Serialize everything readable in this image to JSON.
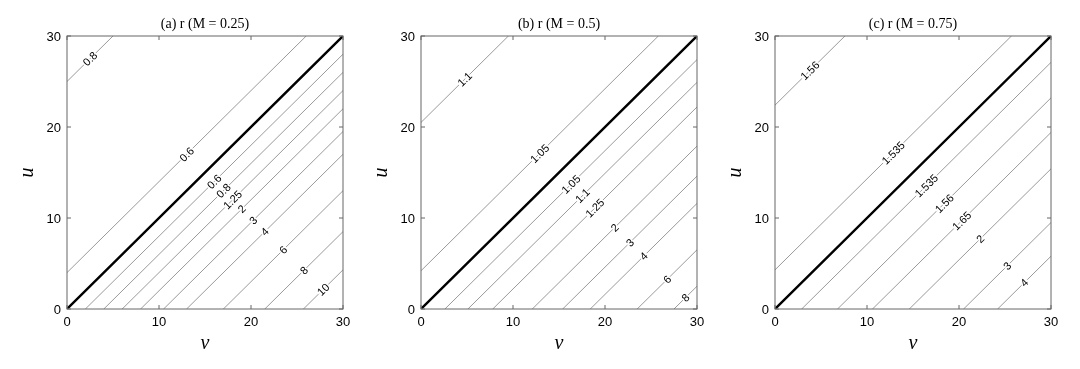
{
  "chart_data": [
    {
      "type": "line",
      "title": "(a) r    (M = 0.25)",
      "xlabel": "v",
      "ylabel": "u",
      "xlim": [
        0,
        30
      ],
      "ylim": [
        0,
        30
      ],
      "xticks": [
        0,
        10,
        20,
        30
      ],
      "yticks": [
        0,
        10,
        20,
        30
      ],
      "grid": false,
      "series": [
        {
          "name": "0.8",
          "color": "#808080",
          "x": [
            0,
            5
          ],
          "values": [
            25,
            30
          ]
        },
        {
          "name": "0.6",
          "color": "#808080",
          "x": [
            0,
            26
          ],
          "values": [
            4,
            30
          ]
        },
        {
          "color": "#000000",
          "x": [
            0,
            30
          ],
          "values": [
            0,
            30
          ]
        },
        {
          "name": "0.6",
          "color": "#808080",
          "x": [
            2,
            30
          ],
          "values": [
            0,
            28
          ]
        },
        {
          "name": "0.8",
          "color": "#808080",
          "x": [
            4,
            30
          ],
          "values": [
            0,
            26
          ]
        },
        {
          "name": "1.25",
          "color": "#808080",
          "x": [
            6,
            30
          ],
          "values": [
            0,
            24
          ]
        },
        {
          "name": "2",
          "color": "#808080",
          "x": [
            8,
            30
          ],
          "values": [
            0,
            22
          ]
        },
        {
          "name": "3",
          "color": "#808080",
          "x": [
            10.5,
            30
          ],
          "values": [
            0,
            19.5
          ]
        },
        {
          "name": "4",
          "color": "#808080",
          "x": [
            13,
            30
          ],
          "values": [
            0,
            17
          ]
        },
        {
          "name": "6",
          "color": "#808080",
          "x": [
            17,
            30
          ],
          "values": [
            0,
            13
          ]
        },
        {
          "name": "8",
          "color": "#808080",
          "x": [
            21.5,
            30
          ],
          "values": [
            0,
            8.5
          ]
        },
        {
          "name": "10",
          "color": "#808080",
          "x": [
            25.7,
            30
          ],
          "values": [
            0,
            4.3
          ]
        }
      ]
    },
    {
      "type": "line",
      "title": "(b) r    (M = 0.5)",
      "xlabel": "v",
      "ylabel": "u",
      "xlim": [
        0,
        30
      ],
      "ylim": [
        0,
        30
      ],
      "xticks": [
        0,
        10,
        20,
        30
      ],
      "yticks": [
        0,
        10,
        20,
        30
      ],
      "grid": false,
      "series": [
        {
          "name": "1.1",
          "color": "#808080",
          "x": [
            0,
            9.5
          ],
          "values": [
            20.5,
            30
          ]
        },
        {
          "name": "1.05",
          "color": "#808080",
          "x": [
            0,
            25.8
          ],
          "values": [
            4.2,
            30
          ]
        },
        {
          "color": "#000000",
          "x": [
            0,
            30
          ],
          "values": [
            0,
            30
          ]
        },
        {
          "name": "1.05",
          "color": "#808080",
          "x": [
            2.6,
            30
          ],
          "values": [
            0,
            27.4
          ]
        },
        {
          "name": "1.1",
          "color": "#808080",
          "x": [
            5.1,
            30
          ],
          "values": [
            0,
            24.9
          ]
        },
        {
          "name": "1.25",
          "color": "#808080",
          "x": [
            7.8,
            30
          ],
          "values": [
            0,
            22.2
          ]
        },
        {
          "name": "2",
          "color": "#808080",
          "x": [
            12.1,
            30
          ],
          "values": [
            0,
            17.9
          ]
        },
        {
          "name": "3",
          "color": "#808080",
          "x": [
            15.4,
            30
          ],
          "values": [
            0,
            14.6
          ]
        },
        {
          "name": "4",
          "color": "#808080",
          "x": [
            18.4,
            30
          ],
          "values": [
            0,
            11.6
          ]
        },
        {
          "name": "6",
          "color": "#808080",
          "x": [
            23.5,
            30
          ],
          "values": [
            0,
            6.5
          ]
        },
        {
          "name": "8",
          "color": "#808080",
          "x": [
            27.5,
            30
          ],
          "values": [
            0,
            2.5
          ]
        }
      ]
    },
    {
      "type": "line",
      "title": "(c) r    (M = 0.75)",
      "xlabel": "v",
      "ylabel": "u",
      "xlim": [
        0,
        30
      ],
      "ylim": [
        0,
        30
      ],
      "xticks": [
        0,
        10,
        20,
        30
      ],
      "yticks": [
        0,
        10,
        20,
        30
      ],
      "grid": false,
      "series": [
        {
          "name": "1.56",
          "color": "#808080",
          "x": [
            0,
            7.6
          ],
          "values": [
            22.4,
            30
          ]
        },
        {
          "name": "1.535",
          "color": "#808080",
          "x": [
            0,
            25.7
          ],
          "values": [
            4.3,
            30
          ]
        },
        {
          "color": "#000000",
          "x": [
            0,
            30
          ],
          "values": [
            0,
            30
          ]
        },
        {
          "name": "1.535",
          "color": "#808080",
          "x": [
            2.9,
            30
          ],
          "values": [
            0,
            27.1
          ]
        },
        {
          "name": "1.56",
          "color": "#808080",
          "x": [
            6.8,
            30
          ],
          "values": [
            0,
            23.2
          ]
        },
        {
          "name": "1.65",
          "color": "#808080",
          "x": [
            10.6,
            30
          ],
          "values": [
            0,
            19.4
          ]
        },
        {
          "name": "2",
          "color": "#808080",
          "x": [
            14.6,
            30
          ],
          "values": [
            0,
            15.4
          ]
        },
        {
          "name": "3",
          "color": "#808080",
          "x": [
            20.5,
            30
          ],
          "values": [
            0,
            9.5
          ]
        },
        {
          "name": "4",
          "color": "#808080",
          "x": [
            24.2,
            30
          ],
          "values": [
            0,
            5.8
          ]
        }
      ]
    }
  ]
}
